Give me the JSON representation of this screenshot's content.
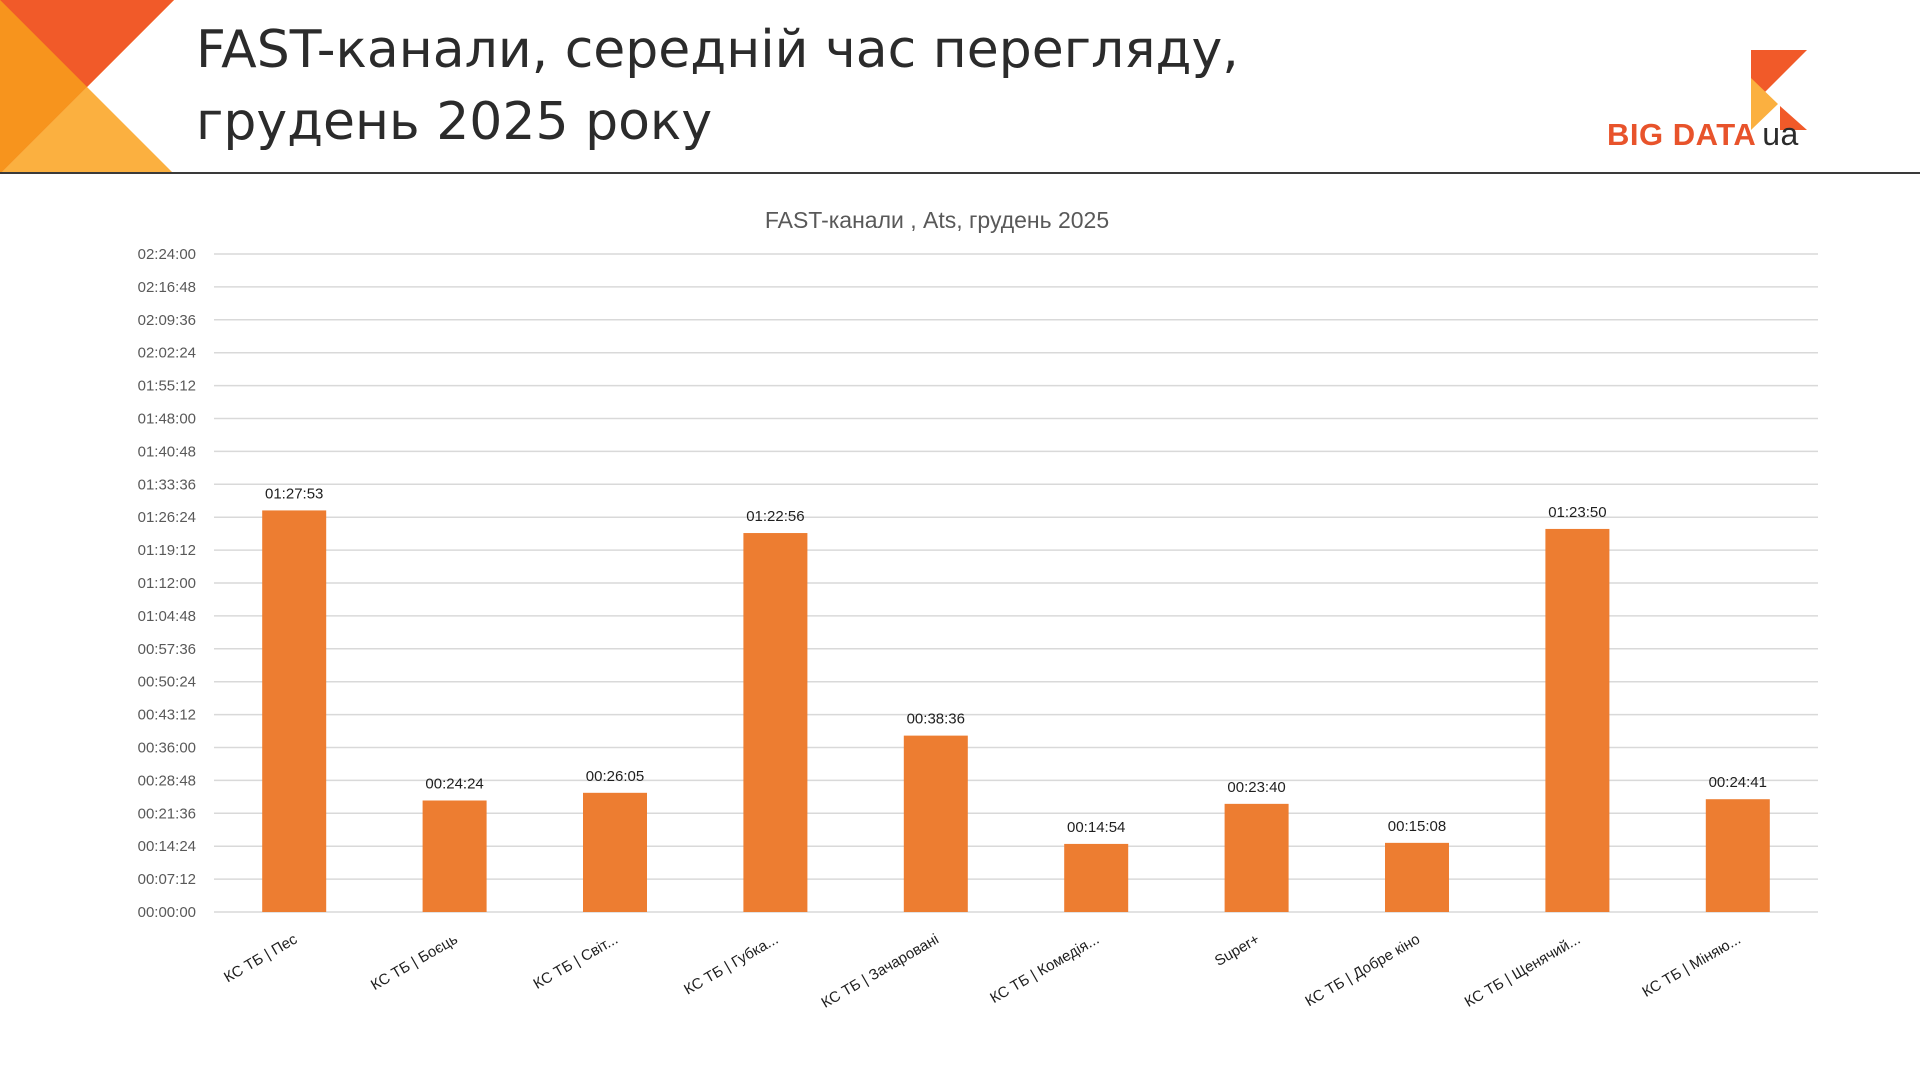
{
  "header": {
    "title_line1": "FAST-канали, середній час перегляду,",
    "title_line2": "грудень 2025 року",
    "logo_brand": "BIG DATA",
    "logo_suffix": "ua"
  },
  "colors": {
    "bar": "#ed7d31",
    "grid": "#d9d9d9",
    "axis_text": "#595959",
    "label_text": "#1f1f1f",
    "brand_orange": "#e8532b",
    "corner_light": "#fbb040",
    "corner_mid": "#f7941d"
  },
  "chart_data": {
    "type": "bar",
    "title": "FAST-канали , Ats, грудень 2025",
    "xlabel": "",
    "ylabel": "",
    "categories": [
      "КС ТБ | Пес",
      "КС ТБ | Боєць",
      "КС ТБ | Світ...",
      "КС ТБ | Губка...",
      "КС ТБ | Зачаровані",
      "КС ТБ | Комедія...",
      "Super+",
      "КС ТБ | Добре кіно",
      "КС ТБ | Щенячий...",
      "КС ТБ | Міняю..."
    ],
    "values": [
      "01:27:53",
      "00:24:24",
      "00:26:05",
      "01:22:56",
      "00:38:36",
      "00:14:54",
      "00:23:40",
      "00:15:08",
      "01:23:50",
      "00:24:41"
    ],
    "data_labels": [
      "01:27:53",
      "00:24:24",
      "00:26:05",
      "01:22:56",
      "00:38:36",
      "00:14:54",
      "00:23:40",
      "00:15:08",
      "01:23:50",
      "00:24:41"
    ],
    "y_ticks": [
      "00:00:00",
      "00:07:12",
      "00:14:24",
      "00:21:36",
      "00:28:48",
      "00:36:00",
      "00:43:12",
      "00:50:24",
      "00:57:36",
      "01:04:48",
      "01:12:00",
      "01:19:12",
      "01:26:24",
      "01:33:36",
      "01:40:48",
      "01:48:00",
      "01:55:12",
      "02:02:24",
      "02:09:36",
      "02:16:48",
      "02:24:00"
    ],
    "ylim": [
      "00:00:00",
      "02:24:00"
    ],
    "grid": true,
    "legend": "none"
  }
}
